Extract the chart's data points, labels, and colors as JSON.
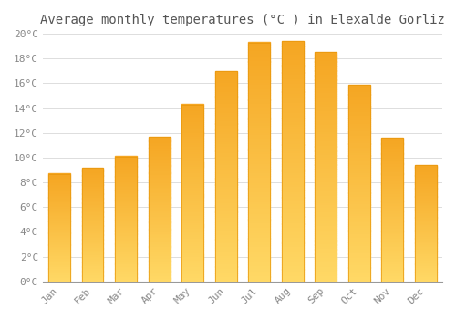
{
  "title": "Average monthly temperatures (°C ) in Elexalde Gorliz",
  "months": [
    "Jan",
    "Feb",
    "Mar",
    "Apr",
    "May",
    "Jun",
    "Jul",
    "Aug",
    "Sep",
    "Oct",
    "Nov",
    "Dec"
  ],
  "temperatures": [
    8.7,
    9.2,
    10.1,
    11.7,
    14.3,
    17.0,
    19.3,
    19.4,
    18.5,
    15.9,
    11.6,
    9.4
  ],
  "bar_color_bottom": "#FFD966",
  "bar_color_top": "#F5A623",
  "bar_edge_color": "#E8960A",
  "ylim": [
    0,
    20
  ],
  "ytick_step": 2,
  "background_color": "#FFFFFF",
  "grid_color": "#DDDDDD",
  "title_fontsize": 10,
  "tick_fontsize": 8,
  "font_family": "monospace",
  "title_color": "#555555",
  "tick_color": "#888888",
  "bar_width": 0.65,
  "gradient_segments": 100
}
